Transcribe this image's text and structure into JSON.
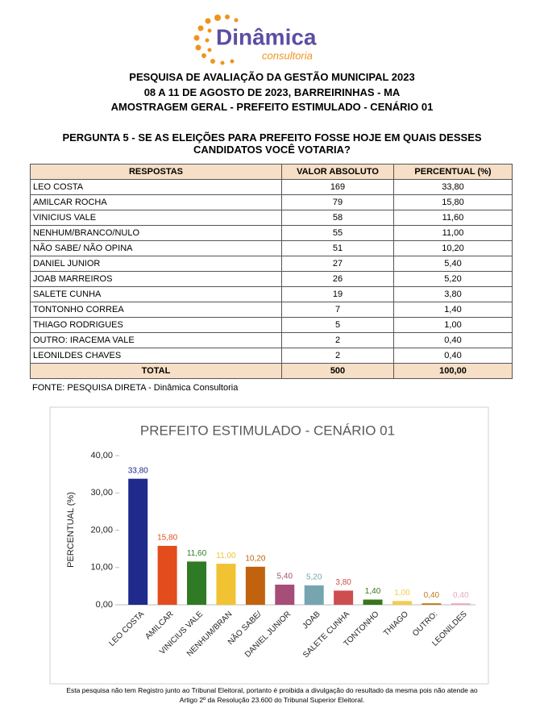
{
  "logo": {
    "name": "Dinâmica",
    "sub": "consultoria"
  },
  "header": {
    "lines": [
      "PESQUISA DE AVALIAÇÃO DA GESTÃO MUNICIPAL 2023",
      "08 A 11 DE AGOSTO DE 2023, BARREIRINHAS - MA",
      "AMOSTRAGEM GERAL - PREFEITO ESTIMULADO - CENÁRIO 01"
    ]
  },
  "question": {
    "lines": [
      "PERGUNTA 5 - SE AS ELEIÇÕES PARA PREFEITO FOSSE HOJE EM QUAIS DESSES",
      "CANDIDATOS VOCÊ VOTARIA?"
    ]
  },
  "table": {
    "columns": [
      "RESPOSTAS",
      "VALOR ABSOLUTO",
      "PERCENTUAL (%)"
    ],
    "rows": [
      [
        "LEO COSTA",
        169,
        "33,80"
      ],
      [
        "AMILCAR ROCHA",
        79,
        "15,80"
      ],
      [
        "VINICIUS VALE",
        58,
        "11,60"
      ],
      [
        "NENHUM/BRANCO/NULO",
        55,
        "11,00"
      ],
      [
        "NÃO SABE/ NÃO OPINA",
        51,
        "10,20"
      ],
      [
        "DANIEL JUNIOR",
        27,
        "5,40"
      ],
      [
        "JOAB MARREIROS",
        26,
        "5,20"
      ],
      [
        "SALETE CUNHA",
        19,
        "3,80"
      ],
      [
        "TONTONHO CORREA",
        7,
        "1,40"
      ],
      [
        "THIAGO RODRIGUES",
        5,
        "1,00"
      ],
      [
        "OUTRO: IRACEMA VALE",
        2,
        "0,40"
      ],
      [
        "LEONILDES CHAVES",
        2,
        "0,40"
      ]
    ],
    "total": [
      "TOTAL",
      500,
      "100,00"
    ]
  },
  "source": "FONTE: PESQUISA DIRETA - Dinâmica Consultoria",
  "chart_data": {
    "type": "bar",
    "title": "PREFEITO ESTIMULADO - CENÁRIO 01",
    "y_label": "PERCENTUAL (%)",
    "categories": [
      "LEO COSTA",
      "AMILCAR",
      "VINICIUS VALE",
      "NENHUM/BRAN",
      "NÃO SABE/",
      "DANIEL JUNIOR",
      "JOAB",
      "SALETE CUNHA",
      "TONTONHO",
      "THIAGO",
      "OUTRO:",
      "LEONILDES"
    ],
    "values": [
      33.8,
      15.8,
      11.6,
      11.0,
      10.2,
      5.4,
      5.2,
      3.8,
      1.4,
      1.0,
      0.4,
      0.4
    ],
    "value_labels": [
      "33,80",
      "15,80",
      "11,60",
      "11,00",
      "10,20",
      "5,40",
      "5,20",
      "3,80",
      "1,40",
      "1,00",
      "0,40",
      "0,40"
    ],
    "colors": [
      "#1f2a8c",
      "#e34c1d",
      "#2f7a24",
      "#f1c232",
      "#c0620e",
      "#a64d79",
      "#76a5af",
      "#cc4e4e",
      "#38761d",
      "#f4cc4a",
      "#bf7a1a",
      "#e8a9c4"
    ],
    "ylim": [
      0,
      40
    ],
    "yticks": [
      {
        "value": 0,
        "label": "0,00"
      },
      {
        "value": 10,
        "label": "10,00"
      },
      {
        "value": 20,
        "label": "20,00"
      },
      {
        "value": 30,
        "label": "30,00"
      },
      {
        "value": 40,
        "label": "40,00"
      }
    ],
    "grid": false
  },
  "footer": {
    "lines": [
      "Esta pesquisa não tem Registro junto ao Tribunal Eleitoral, portanto é proibida a divulgação do resultado da mesma pois não atende ao",
      "Artigo 2º da Resolução 23.600 do Tribunal Superior Eleitoral."
    ]
  }
}
